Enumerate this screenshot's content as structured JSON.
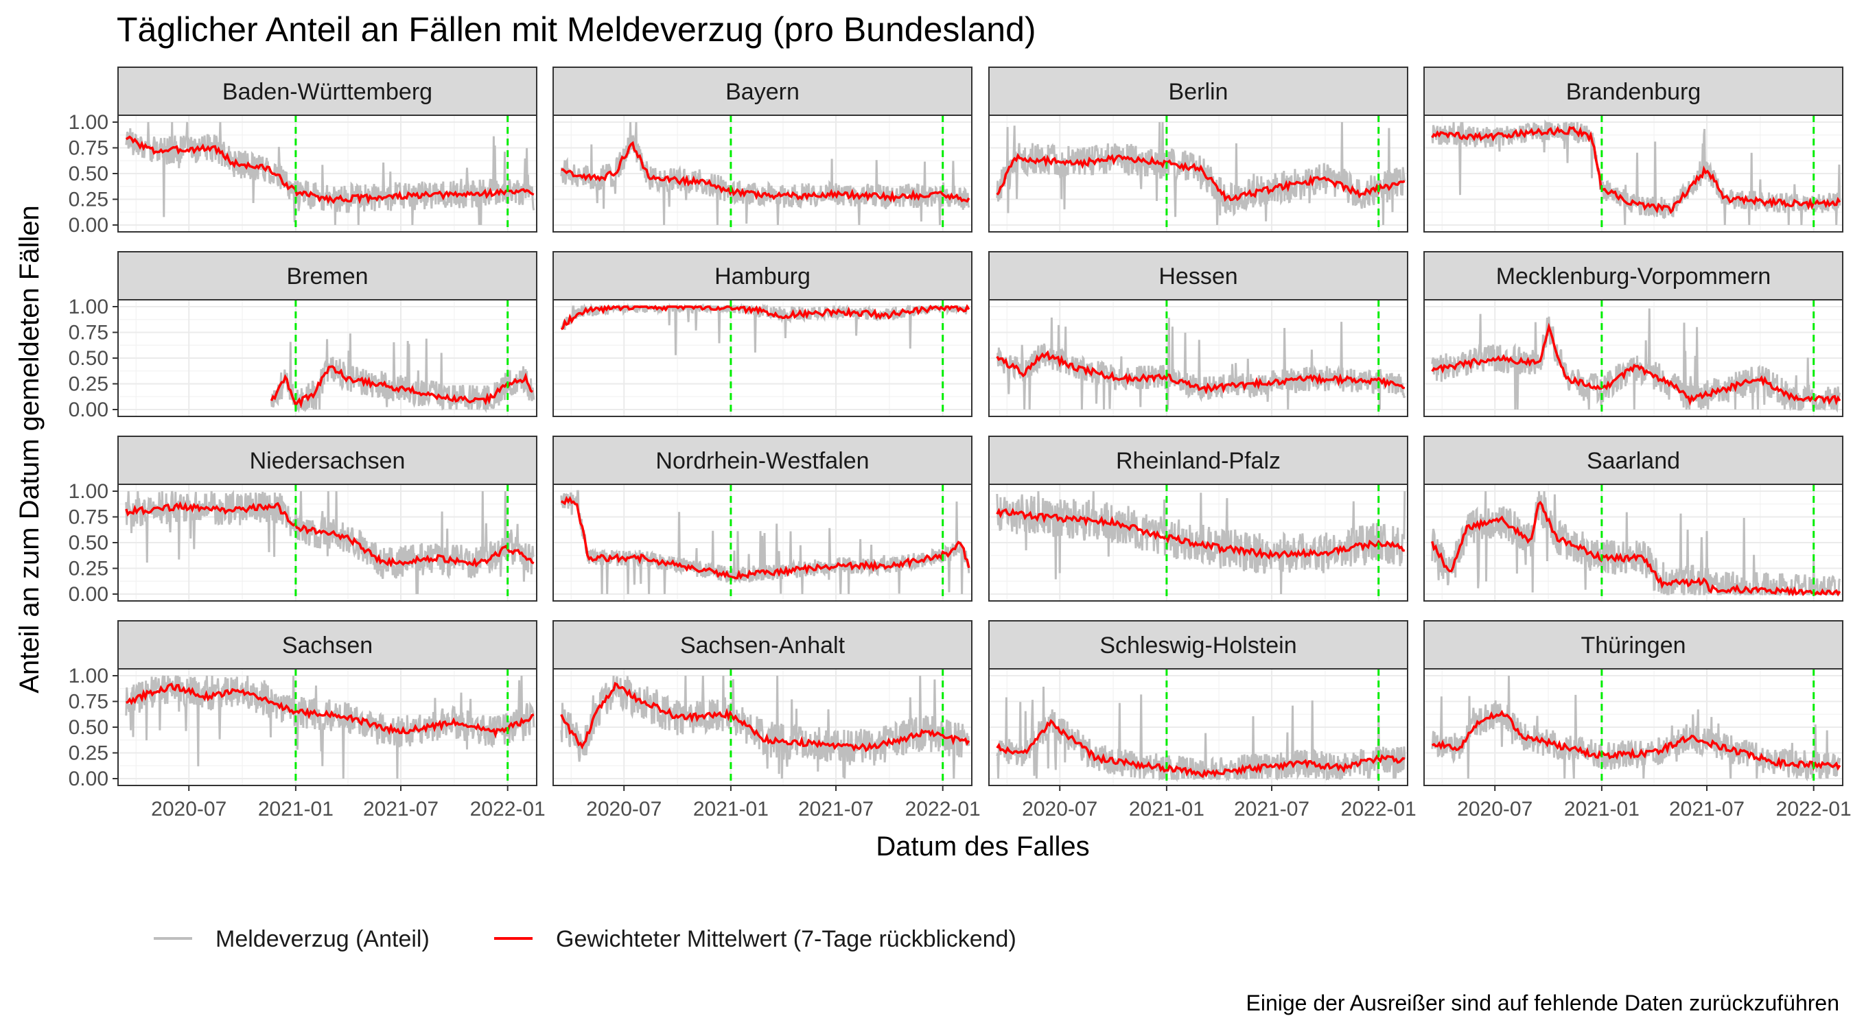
{
  "chart_data": {
    "type": "line",
    "title": "Täglicher Anteil an Fällen mit Meldeverzug (pro Bundesland)",
    "xlabel": "Datum des Falles",
    "ylabel": "Anteil an zum Datum gemeldeten Fällen",
    "caption": "Einige der Ausreißer sind auf fehlende Daten zurückzuführen",
    "x_ticks": [
      "2020-07",
      "2021-01",
      "2021-07",
      "2022-01"
    ],
    "y_ticks": [
      "0.00",
      "0.25",
      "0.50",
      "0.75",
      "1.00"
    ],
    "xlim": [
      "2020-03-01",
      "2022-02-20"
    ],
    "ylim": [
      0,
      1
    ],
    "vlines": [
      "2021-01-01",
      "2022-01-01"
    ],
    "vline_color": "#00ee00",
    "legend_position": "bottom-left",
    "series_styles": [
      {
        "name": "Meldeverzug (Anteil)",
        "color": "#bebebe"
      },
      {
        "name": "Gewichteter Mittelwert (7-Tage rückblickend)",
        "color": "#ff0000"
      }
    ],
    "panels": [
      {
        "name": "Baden-Württemberg",
        "noise": 0.14,
        "trend": [
          [
            "2020-03-15",
            0.85
          ],
          [
            "2020-05-01",
            0.72
          ],
          [
            "2020-08-15",
            0.75
          ],
          [
            "2020-09-15",
            0.6
          ],
          [
            "2020-11-15",
            0.55
          ],
          [
            "2021-01-01",
            0.32
          ],
          [
            "2021-03-01",
            0.25
          ],
          [
            "2021-07-01",
            0.28
          ],
          [
            "2021-11-01",
            0.3
          ],
          [
            "2022-01-01",
            0.32
          ],
          [
            "2022-02-01",
            0.33
          ],
          [
            "2022-02-15",
            0.28
          ]
        ]
      },
      {
        "name": "Bayern",
        "noise": 0.12,
        "trend": [
          [
            "2020-03-15",
            0.52
          ],
          [
            "2020-05-15",
            0.45
          ],
          [
            "2020-06-15",
            0.5
          ],
          [
            "2020-07-15",
            0.8
          ],
          [
            "2020-08-15",
            0.45
          ],
          [
            "2020-11-15",
            0.42
          ],
          [
            "2021-01-01",
            0.32
          ],
          [
            "2021-04-01",
            0.28
          ],
          [
            "2021-07-01",
            0.3
          ],
          [
            "2021-10-01",
            0.27
          ],
          [
            "2022-01-01",
            0.3
          ],
          [
            "2022-02-15",
            0.25
          ]
        ]
      },
      {
        "name": "Berlin",
        "noise": 0.16,
        "trend": [
          [
            "2020-03-15",
            0.3
          ],
          [
            "2020-04-15",
            0.65
          ],
          [
            "2020-08-01",
            0.6
          ],
          [
            "2020-10-15",
            0.65
          ],
          [
            "2021-01-01",
            0.6
          ],
          [
            "2021-03-01",
            0.55
          ],
          [
            "2021-04-15",
            0.25
          ],
          [
            "2021-07-01",
            0.35
          ],
          [
            "2021-10-01",
            0.45
          ],
          [
            "2021-12-01",
            0.3
          ],
          [
            "2022-02-15",
            0.42
          ]
        ]
      },
      {
        "name": "Brandenburg",
        "noise": 0.1,
        "trend": [
          [
            "2020-03-15",
            0.88
          ],
          [
            "2020-06-15",
            0.85
          ],
          [
            "2020-09-01",
            0.9
          ],
          [
            "2020-11-15",
            0.92
          ],
          [
            "2020-12-15",
            0.85
          ],
          [
            "2021-01-01",
            0.35
          ],
          [
            "2021-03-01",
            0.2
          ],
          [
            "2021-05-01",
            0.15
          ],
          [
            "2021-07-01",
            0.55
          ],
          [
            "2021-08-01",
            0.25
          ],
          [
            "2021-11-01",
            0.22
          ],
          [
            "2022-01-01",
            0.2
          ],
          [
            "2022-02-15",
            0.22
          ]
        ]
      },
      {
        "name": "Bremen",
        "noise": 0.14,
        "gap": [
          "2020-05-15",
          "2020-11-15"
        ],
        "trend": [
          [
            "2020-11-20",
            0.08
          ],
          [
            "2020-12-15",
            0.3
          ],
          [
            "2021-01-01",
            0.05
          ],
          [
            "2021-02-01",
            0.15
          ],
          [
            "2021-03-01",
            0.42
          ],
          [
            "2021-04-01",
            0.3
          ],
          [
            "2021-10-01",
            0.1
          ],
          [
            "2021-12-01",
            0.1
          ],
          [
            "2022-01-01",
            0.25
          ],
          [
            "2022-02-01",
            0.3
          ],
          [
            "2022-02-15",
            0.12
          ]
        ]
      },
      {
        "name": "Hamburg",
        "noise": 0.06,
        "trend": [
          [
            "2020-03-15",
            0.8
          ],
          [
            "2020-04-15",
            0.95
          ],
          [
            "2020-07-01",
            1.0
          ],
          [
            "2021-01-01",
            1.0
          ],
          [
            "2021-04-01",
            0.92
          ],
          [
            "2021-07-01",
            0.95
          ],
          [
            "2021-10-01",
            0.92
          ],
          [
            "2022-01-01",
            1.0
          ],
          [
            "2022-02-15",
            0.98
          ]
        ]
      },
      {
        "name": "Hessen",
        "noise": 0.12,
        "trend": [
          [
            "2020-03-15",
            0.5
          ],
          [
            "2020-05-01",
            0.35
          ],
          [
            "2020-06-01",
            0.55
          ],
          [
            "2020-08-01",
            0.4
          ],
          [
            "2020-10-15",
            0.3
          ],
          [
            "2021-01-01",
            0.32
          ],
          [
            "2021-03-01",
            0.2
          ],
          [
            "2021-06-01",
            0.25
          ],
          [
            "2021-09-01",
            0.3
          ],
          [
            "2022-01-01",
            0.28
          ],
          [
            "2022-02-15",
            0.22
          ]
        ]
      },
      {
        "name": "Mecklenburg-Vorpommern",
        "noise": 0.14,
        "trend": [
          [
            "2020-03-15",
            0.38
          ],
          [
            "2020-07-01",
            0.5
          ],
          [
            "2020-09-15",
            0.45
          ],
          [
            "2020-10-01",
            0.8
          ],
          [
            "2020-11-01",
            0.3
          ],
          [
            "2021-01-01",
            0.2
          ],
          [
            "2021-03-01",
            0.42
          ],
          [
            "2021-05-01",
            0.25
          ],
          [
            "2021-06-01",
            0.1
          ],
          [
            "2021-10-01",
            0.3
          ],
          [
            "2021-12-01",
            0.1
          ],
          [
            "2022-02-15",
            0.1
          ]
        ]
      },
      {
        "name": "Niedersachsen",
        "noise": 0.16,
        "trend": [
          [
            "2020-03-15",
            0.8
          ],
          [
            "2020-06-15",
            0.85
          ],
          [
            "2020-09-01",
            0.82
          ],
          [
            "2020-12-01",
            0.85
          ],
          [
            "2021-01-01",
            0.65
          ],
          [
            "2021-04-01",
            0.55
          ],
          [
            "2021-06-01",
            0.3
          ],
          [
            "2021-09-01",
            0.35
          ],
          [
            "2021-11-15",
            0.3
          ],
          [
            "2022-01-01",
            0.45
          ],
          [
            "2022-02-15",
            0.32
          ]
        ]
      },
      {
        "name": "Nordrhein-Westfalen",
        "noise": 0.08,
        "trend": [
          [
            "2020-03-15",
            0.9
          ],
          [
            "2020-04-10",
            0.9
          ],
          [
            "2020-05-01",
            0.35
          ],
          [
            "2020-08-01",
            0.35
          ],
          [
            "2020-11-01",
            0.25
          ],
          [
            "2021-01-01",
            0.18
          ],
          [
            "2021-04-01",
            0.22
          ],
          [
            "2021-07-01",
            0.28
          ],
          [
            "2021-10-01",
            0.27
          ],
          [
            "2022-01-15",
            0.4
          ],
          [
            "2022-02-01",
            0.5
          ],
          [
            "2022-02-15",
            0.28
          ]
        ]
      },
      {
        "name": "Rheinland-Pfalz",
        "noise": 0.2,
        "trend": [
          [
            "2020-03-15",
            0.8
          ],
          [
            "2020-06-01",
            0.75
          ],
          [
            "2020-10-01",
            0.7
          ],
          [
            "2021-01-01",
            0.55
          ],
          [
            "2021-04-01",
            0.45
          ],
          [
            "2021-07-01",
            0.38
          ],
          [
            "2021-10-01",
            0.4
          ],
          [
            "2022-01-01",
            0.5
          ],
          [
            "2022-02-15",
            0.45
          ]
        ]
      },
      {
        "name": "Saarland",
        "noise": 0.18,
        "trend": [
          [
            "2020-03-15",
            0.5
          ],
          [
            "2020-04-15",
            0.2
          ],
          [
            "2020-05-15",
            0.65
          ],
          [
            "2020-07-15",
            0.72
          ],
          [
            "2020-09-01",
            0.5
          ],
          [
            "2020-09-15",
            0.9
          ],
          [
            "2020-10-15",
            0.55
          ],
          [
            "2021-01-01",
            0.35
          ],
          [
            "2021-03-15",
            0.35
          ],
          [
            "2021-04-15",
            0.1
          ],
          [
            "2021-07-01",
            0.12
          ],
          [
            "2021-07-05",
            0.05
          ],
          [
            "2022-01-01",
            0.02
          ],
          [
            "2022-02-15",
            0.0
          ]
        ]
      },
      {
        "name": "Sachsen",
        "noise": 0.16,
        "trend": [
          [
            "2020-03-15",
            0.75
          ],
          [
            "2020-06-01",
            0.9
          ],
          [
            "2020-08-01",
            0.8
          ],
          [
            "2020-10-01",
            0.85
          ],
          [
            "2021-01-01",
            0.65
          ],
          [
            "2021-04-01",
            0.6
          ],
          [
            "2021-07-01",
            0.45
          ],
          [
            "2021-10-01",
            0.55
          ],
          [
            "2021-12-15",
            0.45
          ],
          [
            "2022-02-15",
            0.6
          ]
        ]
      },
      {
        "name": "Sachsen-Anhalt",
        "noise": 0.18,
        "trend": [
          [
            "2020-03-15",
            0.6
          ],
          [
            "2020-04-20",
            0.3
          ],
          [
            "2020-05-15",
            0.65
          ],
          [
            "2020-06-15",
            0.9
          ],
          [
            "2020-08-01",
            0.75
          ],
          [
            "2020-10-01",
            0.6
          ],
          [
            "2021-01-01",
            0.62
          ],
          [
            "2021-03-01",
            0.38
          ],
          [
            "2021-05-01",
            0.35
          ],
          [
            "2021-09-01",
            0.3
          ],
          [
            "2021-12-01",
            0.45
          ],
          [
            "2022-02-15",
            0.35
          ]
        ]
      },
      {
        "name": "Schleswig-Holstein",
        "noise": 0.14,
        "trend": [
          [
            "2020-03-15",
            0.3
          ],
          [
            "2020-05-01",
            0.25
          ],
          [
            "2020-06-15",
            0.55
          ],
          [
            "2020-09-01",
            0.2
          ],
          [
            "2020-11-01",
            0.15
          ],
          [
            "2021-01-01",
            0.1
          ],
          [
            "2021-03-01",
            0.05
          ],
          [
            "2021-06-01",
            0.1
          ],
          [
            "2021-09-01",
            0.15
          ],
          [
            "2021-11-01",
            0.1
          ],
          [
            "2022-01-01",
            0.2
          ],
          [
            "2022-02-15",
            0.18
          ]
        ]
      },
      {
        "name": "Thüringen",
        "noise": 0.14,
        "trend": [
          [
            "2020-03-15",
            0.35
          ],
          [
            "2020-05-01",
            0.3
          ],
          [
            "2020-06-01",
            0.55
          ],
          [
            "2020-07-15",
            0.65
          ],
          [
            "2020-08-15",
            0.42
          ],
          [
            "2020-11-01",
            0.3
          ],
          [
            "2021-01-01",
            0.22
          ],
          [
            "2021-04-01",
            0.25
          ],
          [
            "2021-06-01",
            0.4
          ],
          [
            "2021-08-01",
            0.3
          ],
          [
            "2021-11-01",
            0.15
          ],
          [
            "2022-02-15",
            0.12
          ]
        ]
      }
    ]
  }
}
